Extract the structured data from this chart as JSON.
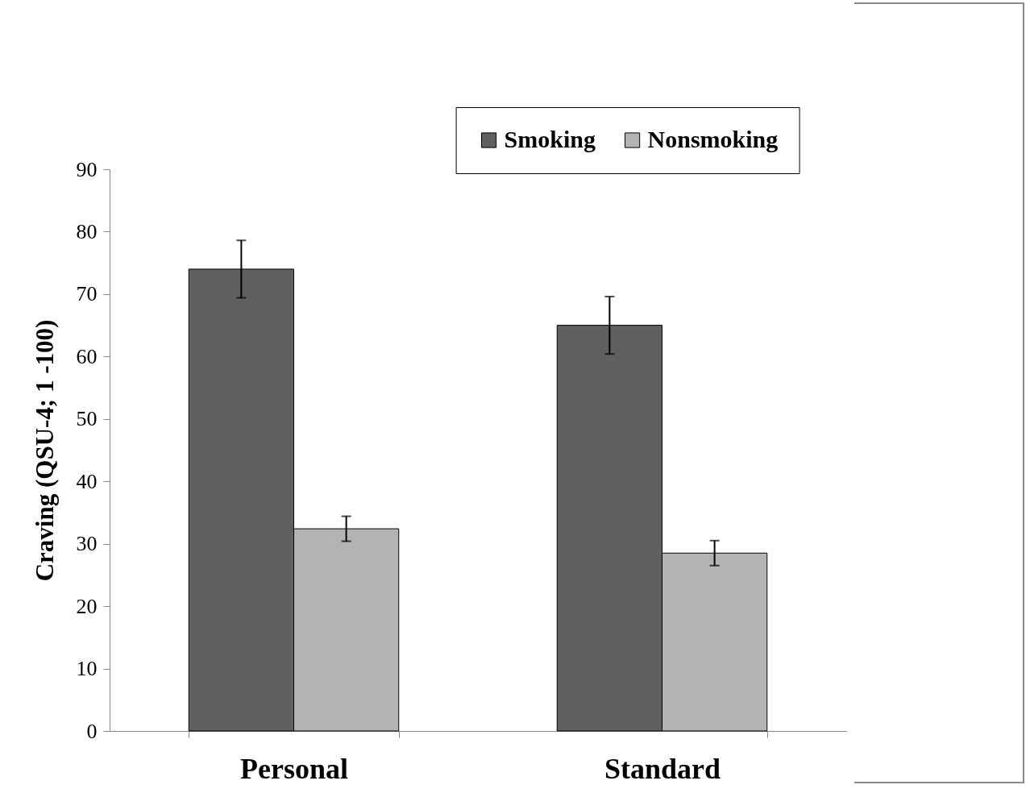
{
  "chart_data": {
    "type": "bar",
    "ylabel": "Craving (QSU-4; 1 -100)",
    "categories": [
      "Personal",
      "Standard"
    ],
    "series": [
      {
        "name": "Smoking",
        "color": "#606060",
        "values": [
          74,
          65
        ],
        "errors": [
          4.6,
          4.6
        ]
      },
      {
        "name": "Nonsmoking",
        "color": "#b3b3b3",
        "values": [
          32.4,
          28.5
        ],
        "errors": [
          2,
          2
        ]
      }
    ],
    "ylim": [
      0,
      90
    ],
    "yticks": [
      0,
      10,
      20,
      30,
      40,
      50,
      60,
      70,
      80,
      90
    ],
    "legend": "top right"
  }
}
